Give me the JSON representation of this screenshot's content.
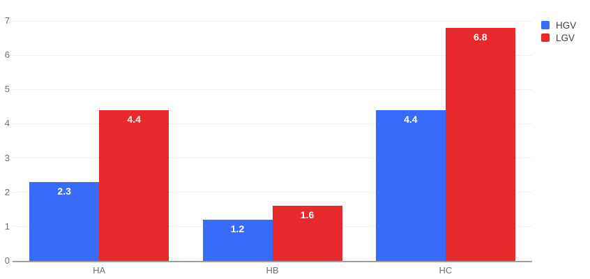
{
  "chart_data": {
    "type": "bar",
    "title": "",
    "xlabel": "",
    "ylabel": "",
    "categories": [
      "HA",
      "HB",
      "HC"
    ],
    "series": [
      {
        "name": "HGV",
        "color": "#386BF7",
        "values": [
          2.3,
          1.2,
          4.4
        ],
        "labels": [
          "2.3",
          "1.2",
          "4.4"
        ]
      },
      {
        "name": "LGV",
        "color": "#E8292B",
        "values": [
          4.4,
          1.6,
          6.8
        ],
        "labels": [
          "4.4",
          "1.6",
          "6.8"
        ]
      }
    ],
    "ylim": [
      0,
      7
    ],
    "yticks": [
      0,
      1,
      2,
      3,
      4,
      5,
      6,
      7
    ],
    "grid": "horizontal",
    "legend_position": "top-right",
    "bar_value_label_color": "#ffffff"
  },
  "style": {
    "background": "#ffffff",
    "axis_line_color": "#9e9e9e",
    "gridline_color": "#f0f0f0",
    "tick_label_color": "#6e6e6e",
    "category_label_color": "#6e6e6e",
    "legend_text_color": "#3f3f3f"
  }
}
